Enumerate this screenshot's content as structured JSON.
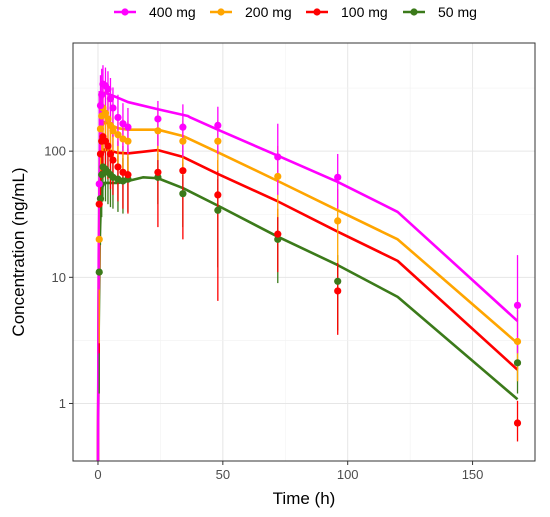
{
  "chart_data": {
    "type": "scatter",
    "xlabel": "Time (h)",
    "ylabel": "Concentration (ng/mL)",
    "xlim": [
      -10,
      175
    ],
    "ylim": [
      0.35,
      720
    ],
    "yscale": "log",
    "xticks": [
      0,
      50,
      100,
      150
    ],
    "yticks": [
      1,
      10,
      100
    ],
    "xtick_labels": [
      "0",
      "50",
      "100",
      "150"
    ],
    "ytick_labels": [
      "1",
      "10",
      "100"
    ],
    "grid": true,
    "legend_position": "top",
    "series": [
      {
        "name": "400 mg",
        "color": "#ff00ff",
        "points": [
          {
            "x": 0.5,
            "y": 55,
            "lo": 8,
            "hi": 300
          },
          {
            "x": 1,
            "y": 230,
            "lo": 95,
            "hi": 400
          },
          {
            "x": 1.5,
            "y": 280,
            "lo": 130,
            "hi": 450
          },
          {
            "x": 2,
            "y": 340,
            "lo": 160,
            "hi": 480
          },
          {
            "x": 3,
            "y": 330,
            "lo": 170,
            "hi": 460
          },
          {
            "x": 4,
            "y": 310,
            "lo": 170,
            "hi": 430
          },
          {
            "x": 5,
            "y": 260,
            "lo": 150,
            "hi": 380
          },
          {
            "x": 6,
            "y": 220,
            "lo": 130,
            "hi": 320
          },
          {
            "x": 8,
            "y": 185,
            "lo": 110,
            "hi": 280
          },
          {
            "x": 10,
            "y": 165,
            "lo": 100,
            "hi": 240
          },
          {
            "x": 12,
            "y": 155,
            "lo": 95,
            "hi": 220
          },
          {
            "x": 24,
            "y": 180,
            "lo": 110,
            "hi": 250
          },
          {
            "x": 34,
            "y": 155,
            "lo": 90,
            "hi": 235
          },
          {
            "x": 48,
            "y": 160,
            "lo": 95,
            "hi": 225
          },
          {
            "x": 72,
            "y": 90,
            "lo": 45,
            "hi": 165
          },
          {
            "x": 96,
            "y": 62,
            "lo": 35,
            "hi": 95
          },
          {
            "x": 168,
            "y": 6,
            "lo": 2.5,
            "hi": 15
          }
        ],
        "curve": [
          [
            0,
            0.35
          ],
          [
            0.3,
            15
          ],
          [
            0.7,
            100
          ],
          [
            1.2,
            210
          ],
          [
            1.8,
            270
          ],
          [
            2.5,
            290
          ],
          [
            4,
            285
          ],
          [
            8,
            265
          ],
          [
            12,
            245
          ],
          [
            24,
            215
          ],
          [
            36,
            190
          ],
          [
            37,
            185
          ],
          [
            48,
            148
          ],
          [
            72,
            92
          ],
          [
            96,
            57
          ],
          [
            120,
            33
          ],
          [
            168,
            4.5
          ]
        ]
      },
      {
        "name": "200 mg",
        "color": "#ffa500",
        "points": [
          {
            "x": 0.5,
            "y": 20,
            "lo": 3,
            "hi": 65
          },
          {
            "x": 1,
            "y": 150,
            "lo": 70,
            "hi": 250
          },
          {
            "x": 1.5,
            "y": 190,
            "lo": 90,
            "hi": 290
          },
          {
            "x": 2,
            "y": 220,
            "lo": 100,
            "hi": 320
          },
          {
            "x": 3,
            "y": 200,
            "lo": 100,
            "hi": 300
          },
          {
            "x": 4,
            "y": 180,
            "lo": 95,
            "hi": 270
          },
          {
            "x": 5,
            "y": 160,
            "lo": 85,
            "hi": 240
          },
          {
            "x": 6,
            "y": 145,
            "lo": 80,
            "hi": 220
          },
          {
            "x": 8,
            "y": 135,
            "lo": 75,
            "hi": 195
          },
          {
            "x": 10,
            "y": 125,
            "lo": 70,
            "hi": 180
          },
          {
            "x": 12,
            "y": 120,
            "lo": 70,
            "hi": 175
          },
          {
            "x": 24,
            "y": 145,
            "lo": 85,
            "hi": 210
          },
          {
            "x": 34,
            "y": 120,
            "lo": 65,
            "hi": 175
          },
          {
            "x": 48,
            "y": 120,
            "lo": 70,
            "hi": 175
          },
          {
            "x": 72,
            "y": 63,
            "lo": 30,
            "hi": 110
          },
          {
            "x": 96,
            "y": 28,
            "lo": 13,
            "hi": 50
          },
          {
            "x": 168,
            "y": 3.1,
            "lo": 1.5,
            "hi": 5.5
          }
        ],
        "curve": [
          [
            0,
            0.35
          ],
          [
            0.3,
            10
          ],
          [
            0.7,
            60
          ],
          [
            1.2,
            125
          ],
          [
            1.8,
            160
          ],
          [
            2.5,
            170
          ],
          [
            4,
            165
          ],
          [
            8,
            152
          ],
          [
            12,
            148
          ],
          [
            24,
            148
          ],
          [
            34,
            132
          ],
          [
            48,
            98
          ],
          [
            72,
            58
          ],
          [
            96,
            34
          ],
          [
            120,
            20
          ],
          [
            168,
            3
          ]
        ]
      },
      {
        "name": "100 mg",
        "color": "#ff0000",
        "points": [
          {
            "x": 0.5,
            "y": 38,
            "lo": 2.5,
            "hi": 95
          },
          {
            "x": 1,
            "y": 95,
            "lo": 40,
            "hi": 160
          },
          {
            "x": 1.5,
            "y": 120,
            "lo": 60,
            "hi": 190
          },
          {
            "x": 2,
            "y": 130,
            "lo": 70,
            "hi": 200
          },
          {
            "x": 3,
            "y": 120,
            "lo": 65,
            "hi": 185
          },
          {
            "x": 4,
            "y": 110,
            "lo": 60,
            "hi": 170
          },
          {
            "x": 5,
            "y": 95,
            "lo": 50,
            "hi": 150
          },
          {
            "x": 6,
            "y": 85,
            "lo": 45,
            "hi": 135
          },
          {
            "x": 8,
            "y": 75,
            "lo": 40,
            "hi": 120
          },
          {
            "x": 10,
            "y": 68,
            "lo": 35,
            "hi": 110
          },
          {
            "x": 12,
            "y": 65,
            "lo": 32,
            "hi": 105
          },
          {
            "x": 24,
            "y": 68,
            "lo": 25,
            "hi": 140
          },
          {
            "x": 34,
            "y": 70,
            "lo": 20,
            "hi": 125
          },
          {
            "x": 48,
            "y": 45,
            "lo": 6.5,
            "hi": 85
          },
          {
            "x": 72,
            "y": 22,
            "lo": 11,
            "hi": 35
          },
          {
            "x": 96,
            "y": 7.8,
            "lo": 3.5,
            "hi": 13
          },
          {
            "x": 168,
            "y": 0.7,
            "lo": 0.5,
            "hi": 1.05
          }
        ],
        "curve": [
          [
            0,
            0.35
          ],
          [
            0.3,
            7
          ],
          [
            0.7,
            38
          ],
          [
            1.2,
            75
          ],
          [
            1.8,
            95
          ],
          [
            2.5,
            103
          ],
          [
            4,
            102
          ],
          [
            8,
            97
          ],
          [
            12,
            96
          ],
          [
            24,
            102
          ],
          [
            34,
            90
          ],
          [
            48,
            66
          ],
          [
            72,
            40
          ],
          [
            96,
            23
          ],
          [
            120,
            13.5
          ],
          [
            168,
            1.85
          ]
        ]
      },
      {
        "name": "50 mg",
        "color": "#3b7a1a",
        "points": [
          {
            "x": 0.5,
            "y": 11,
            "lo": 1.2,
            "hi": 30
          },
          {
            "x": 1,
            "y": 42,
            "lo": 18,
            "hi": 75
          },
          {
            "x": 1.5,
            "y": 65,
            "lo": 30,
            "hi": 100
          },
          {
            "x": 2,
            "y": 75,
            "lo": 40,
            "hi": 115
          },
          {
            "x": 3,
            "y": 72,
            "lo": 40,
            "hi": 110
          },
          {
            "x": 4,
            "y": 68,
            "lo": 38,
            "hi": 105
          },
          {
            "x": 5,
            "y": 65,
            "lo": 36,
            "hi": 100
          },
          {
            "x": 6,
            "y": 62,
            "lo": 35,
            "hi": 95
          },
          {
            "x": 8,
            "y": 60,
            "lo": 33,
            "hi": 92
          },
          {
            "x": 10,
            "y": 58,
            "lo": 32,
            "hi": 88
          },
          {
            "x": 12,
            "y": 60,
            "lo": 33,
            "hi": 90
          },
          {
            "x": 24,
            "y": 62,
            "lo": 38,
            "hi": 95
          },
          {
            "x": 34,
            "y": 46,
            "lo": 25,
            "hi": 80
          },
          {
            "x": 48,
            "y": 34,
            "lo": 12,
            "hi": 60
          },
          {
            "x": 72,
            "y": 20,
            "lo": 9,
            "hi": 32
          },
          {
            "x": 96,
            "y": 9.3,
            "lo": 3.8,
            "hi": 15
          },
          {
            "x": 168,
            "y": 2.1,
            "lo": 1.2,
            "hi": 3.2
          }
        ],
        "curve": [
          [
            0,
            0.35
          ],
          [
            0.3,
            4
          ],
          [
            0.7,
            20
          ],
          [
            1.2,
            40
          ],
          [
            1.8,
            52
          ],
          [
            2.5,
            56
          ],
          [
            4,
            56
          ],
          [
            8,
            56
          ],
          [
            12,
            58
          ],
          [
            18,
            62
          ],
          [
            24,
            61
          ],
          [
            34,
            51
          ],
          [
            48,
            37
          ],
          [
            72,
            21
          ],
          [
            96,
            12.5
          ],
          [
            120,
            7
          ],
          [
            168,
            1.08
          ]
        ]
      }
    ]
  }
}
